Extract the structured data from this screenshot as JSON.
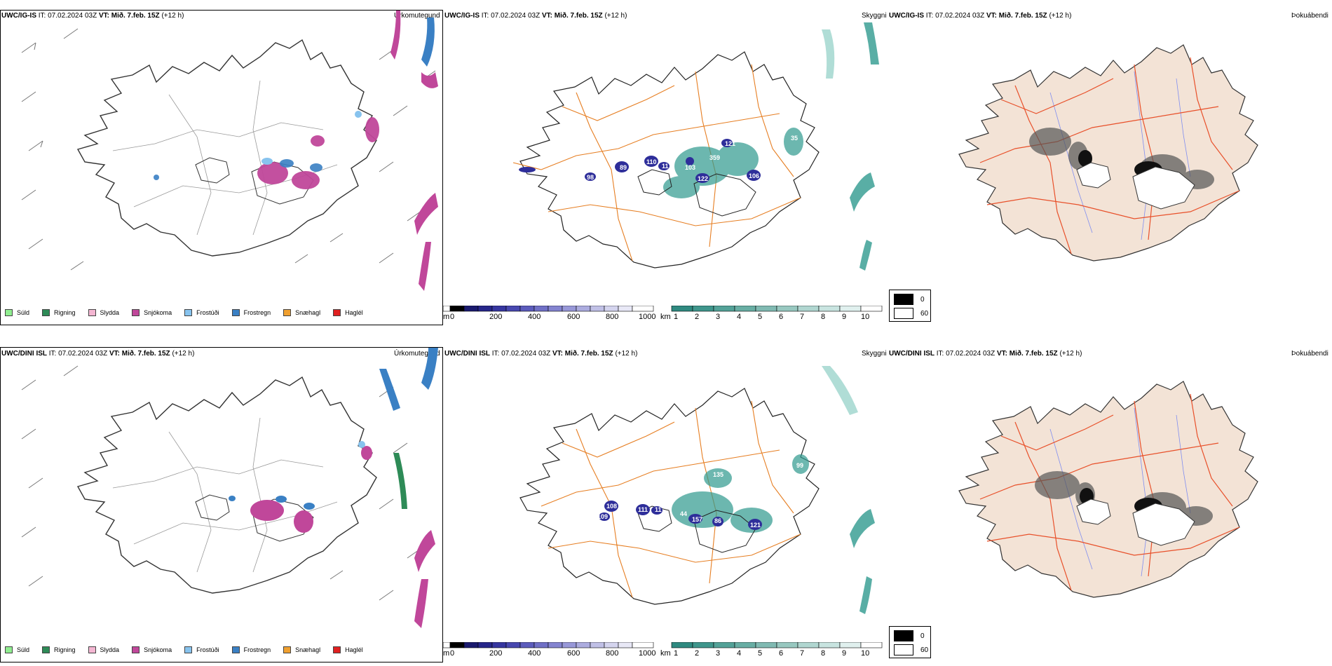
{
  "rows": [
    {
      "model": "UWC/IG-IS",
      "it_label": "IT:",
      "it_value": "07.02.2024 03Z",
      "vt_label": "VT:",
      "vt_value": "Mið. 7.feb. 15Z",
      "lead": "(+12 h)",
      "titles": [
        "Úrkomutegund",
        "Skyggni",
        "Þokuábendi"
      ]
    },
    {
      "model": "UWC/DINI ISL",
      "it_label": "IT:",
      "it_value": "07.02.2024 03Z",
      "vt_label": "VT:",
      "vt_value": "Mið. 7.feb. 15Z",
      "lead": "(+12 h)",
      "titles": [
        "Úrkomutegund",
        "Skyggni",
        "Þokuábendi"
      ]
    }
  ],
  "precip_legend": [
    {
      "label": "Súld",
      "color": "#90ee90"
    },
    {
      "label": "Rigning",
      "color": "#2e8b57"
    },
    {
      "label": "Slydda",
      "color": "#f4b6d2"
    },
    {
      "label": "Snjókoma",
      "color": "#c0479a"
    },
    {
      "label": "Frostúði",
      "color": "#87c3ee"
    },
    {
      "label": "Frostregn",
      "color": "#3a80c4"
    },
    {
      "label": "Snæhagl",
      "color": "#f0a030"
    },
    {
      "label": "Haglél",
      "color": "#e02020"
    }
  ],
  "ceiling_bar": {
    "unit": "m",
    "ticks": [
      "0",
      "200",
      "400",
      "600",
      "800",
      "1000"
    ]
  },
  "vis_bar": {
    "unit": "km",
    "ticks": [
      "1",
      "2",
      "3",
      "4",
      "5",
      "6",
      "7",
      "8",
      "9",
      "10"
    ]
  },
  "cloud_legend": [
    "0",
    "60"
  ],
  "ceiling_labels_top": [
    "89",
    "98",
    "110",
    "11",
    "359",
    "121",
    "103",
    "122",
    "106",
    "35"
  ],
  "ceiling_labels_bottom": [
    "108",
    "109",
    "111",
    "11",
    "135",
    "44",
    "157",
    "86",
    "121",
    "99"
  ],
  "colors": {
    "coast": "#222",
    "roads": "#e67e22",
    "fog_land": "#f3e3d6",
    "fog_roads": "#e8502a",
    "rivers": "#7f8df0",
    "snow": "#c0479a",
    "frost": "#3a80c4",
    "teal": "#2f9a8e",
    "ceiling": "#2e2e9a"
  }
}
